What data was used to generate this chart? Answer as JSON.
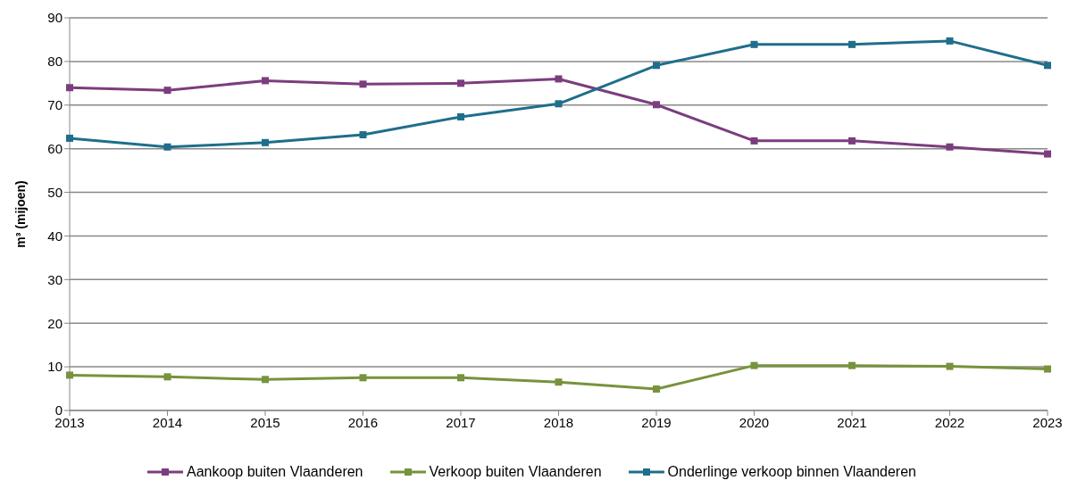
{
  "chart_data": {
    "type": "line",
    "ylabel": "m³ (mijoen)",
    "categories": [
      "2013",
      "2014",
      "2015",
      "2016",
      "2017",
      "2018",
      "2019",
      "2020",
      "2021",
      "2022",
      "2023"
    ],
    "series": [
      {
        "name": "Aankoop buiten Vlaanderen",
        "color": "#7b3d7e",
        "values": [
          74.0,
          73.4,
          75.6,
          74.8,
          75.0,
          76.0,
          70.1,
          61.8,
          61.8,
          60.4,
          58.8
        ]
      },
      {
        "name": "Verkoop buiten Vlaanderen",
        "color": "#77933c",
        "values": [
          8.1,
          7.7,
          7.1,
          7.5,
          7.5,
          6.5,
          4.9,
          10.3,
          10.3,
          10.1,
          9.5
        ]
      },
      {
        "name": "Onderlinge verkoop binnen Vlaanderen",
        "color": "#1f6e8c",
        "values": [
          62.4,
          60.4,
          61.4,
          63.2,
          67.3,
          70.3,
          79.1,
          83.9,
          83.9,
          84.7,
          79.1
        ]
      }
    ],
    "ylim": [
      0,
      90
    ],
    "yticks": [
      0,
      10,
      20,
      30,
      40,
      50,
      60,
      70,
      80,
      90
    ],
    "grid": "y",
    "legend": "bottom",
    "marker": "square",
    "line_style": "solid"
  }
}
